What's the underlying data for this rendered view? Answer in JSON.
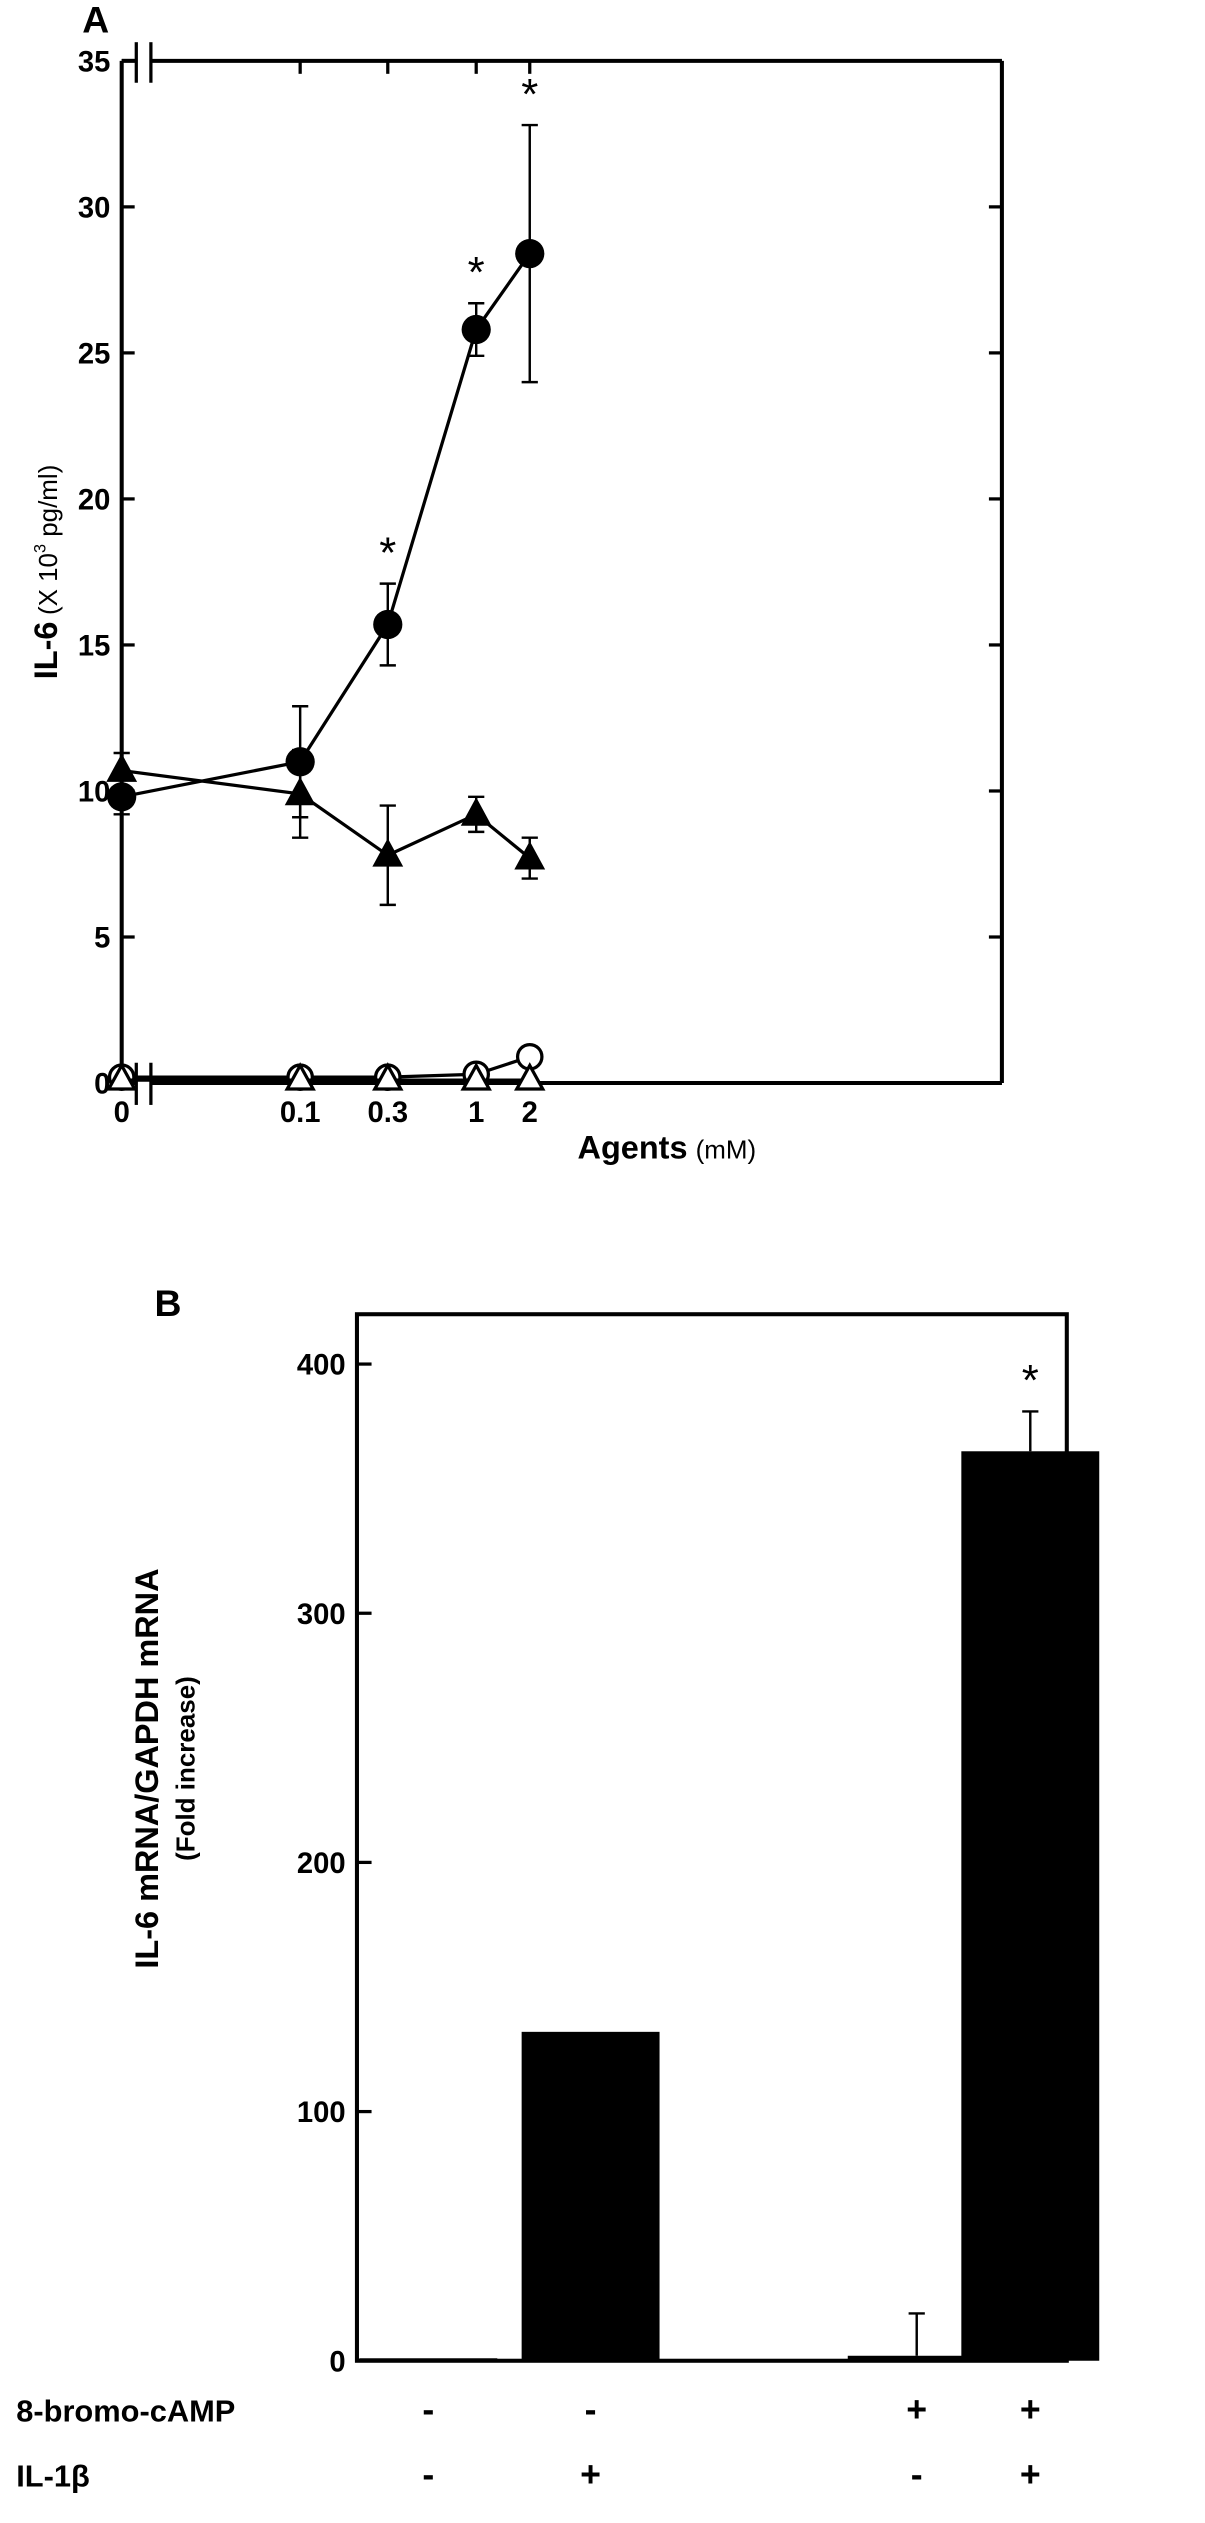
{
  "chart_data": [
    {
      "panel_label": "A",
      "type": "line",
      "ylabel_main": "IL-6",
      "ylabel_unit_prefix": "(X 10",
      "ylabel_unit_exp": "3",
      "ylabel_unit_suffix": " pg/ml)",
      "xlabel_main": "Agents",
      "xlabel_unit": "(mM)",
      "x_ticks": [
        "0",
        "0.1",
        "0.3",
        "1",
        "2"
      ],
      "y_ticks": [
        "0",
        "5",
        "10",
        "15",
        "20",
        "25",
        "30",
        "35"
      ],
      "ylim": [
        0,
        35
      ],
      "axis_break": true,
      "series": [
        {
          "marker": "filled-circle",
          "x": [
            "0",
            "0.1",
            "0.3",
            "1",
            "2"
          ],
          "values": [
            9.8,
            11.0,
            15.7,
            25.8,
            28.4
          ],
          "errors": [
            0.6,
            1.9,
            1.4,
            0.9,
            4.4
          ]
        },
        {
          "marker": "filled-triangle",
          "x": [
            "0",
            "0.1",
            "0.3",
            "1",
            "2"
          ],
          "values": [
            10.7,
            9.9,
            7.8,
            9.2,
            7.7
          ],
          "errors": [
            0.6,
            1.5,
            1.7,
            0.6,
            0.7
          ]
        },
        {
          "marker": "open-circle",
          "x": [
            "0",
            "0.1",
            "0.3",
            "1",
            "2"
          ],
          "values": [
            0.2,
            0.2,
            0.2,
            0.3,
            0.9
          ],
          "errors": [
            0,
            0,
            0,
            0,
            0
          ]
        },
        {
          "marker": "open-triangle",
          "x": [
            "0",
            "0.1",
            "0.3",
            "1",
            "2"
          ],
          "values": [
            0.1,
            0.1,
            0.1,
            0.1,
            0.1
          ],
          "errors": [
            0,
            0,
            0,
            0,
            0
          ]
        }
      ],
      "annotations": [
        {
          "text": "*",
          "x": "0.3"
        },
        {
          "text": "*",
          "x": "1"
        },
        {
          "text": "*",
          "x": "2"
        }
      ]
    },
    {
      "panel_label": "B",
      "type": "bar",
      "ylabel_main": "IL-6 mRNA/GAPDH mRNA",
      "ylabel_sub": "(Fold increase)",
      "y_ticks": [
        "0",
        "100",
        "200",
        "300",
        "400"
      ],
      "ylim": [
        0,
        420
      ],
      "values": [
        1,
        132,
        2,
        365
      ],
      "errors": [
        0,
        0,
        17,
        16
      ],
      "annotations": [
        {
          "text": "*",
          "bar": 3
        }
      ],
      "conditions": [
        {
          "label": "8-bromo-cAMP",
          "signs": [
            "-",
            "-",
            "+",
            "+"
          ]
        },
        {
          "label": "IL-1β",
          "signs": [
            "-",
            "+",
            "-",
            "+"
          ]
        }
      ]
    }
  ]
}
